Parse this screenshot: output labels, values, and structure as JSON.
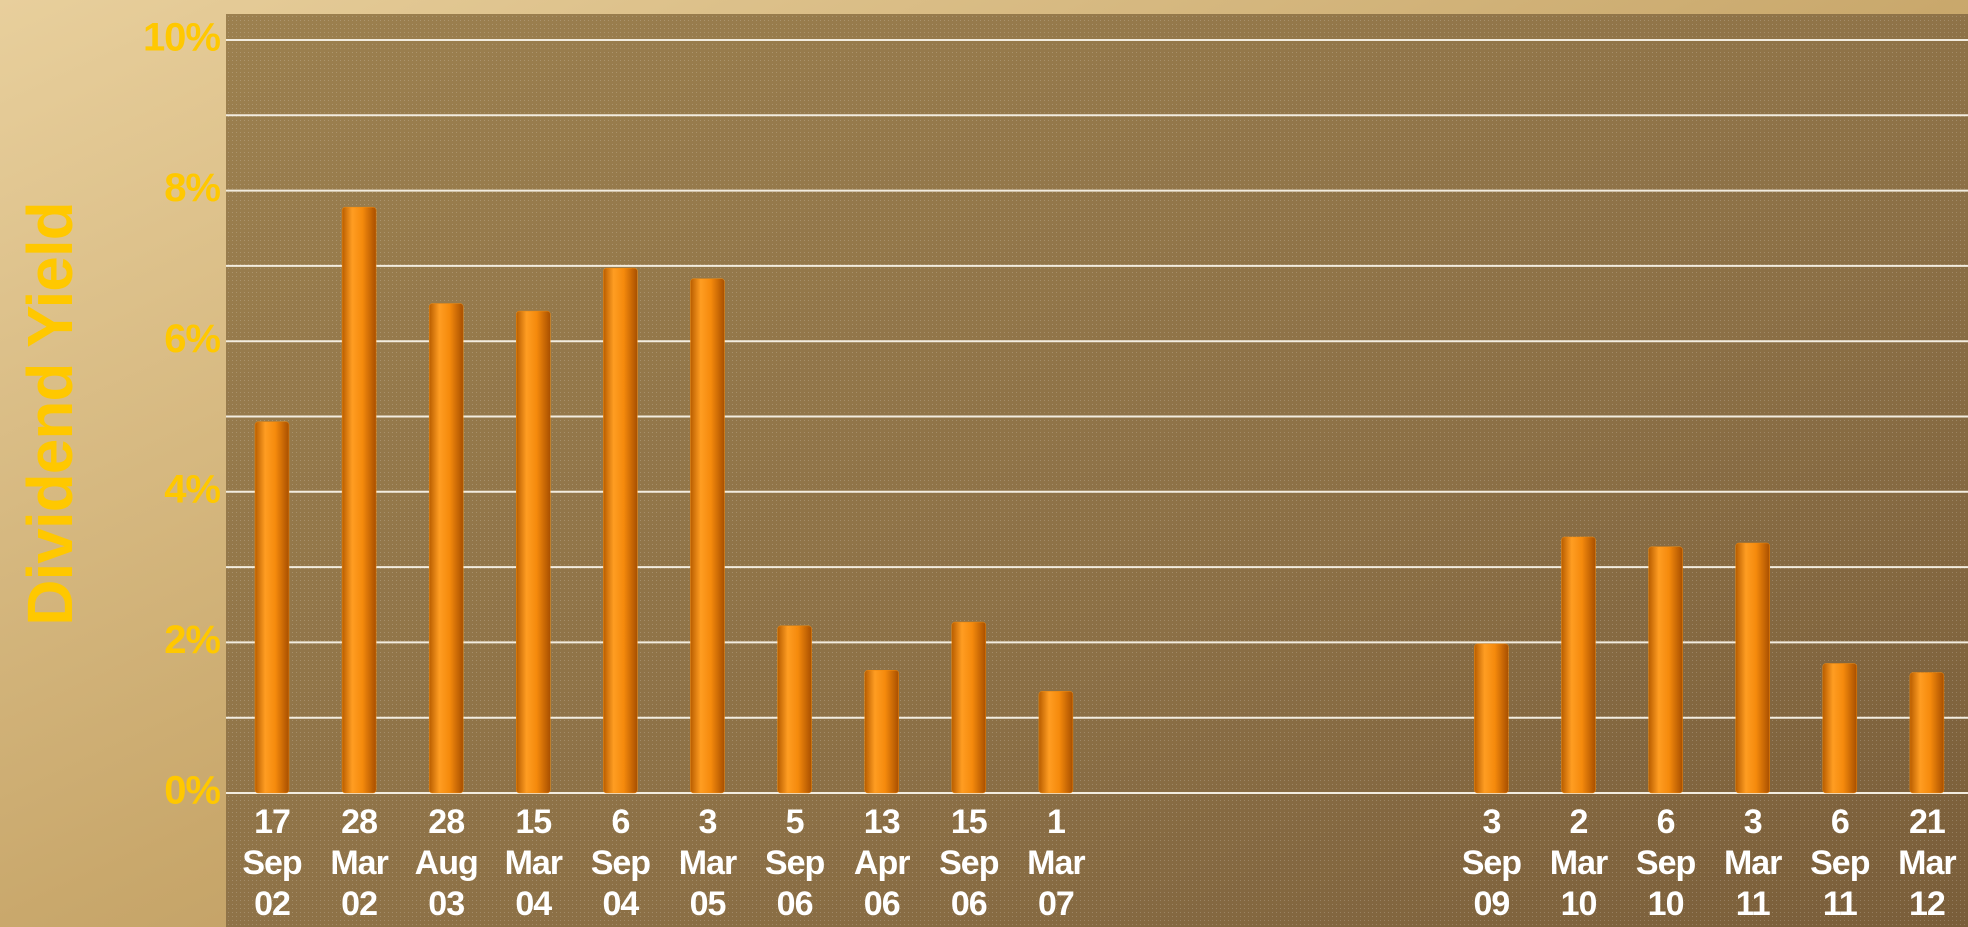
{
  "chart_data": {
    "type": "bar",
    "y_label": "Dividend Yield",
    "categories": [
      [
        "17",
        "Sep",
        "02"
      ],
      [
        "28",
        "Mar",
        "02"
      ],
      [
        "28",
        "Aug",
        "03"
      ],
      [
        "15",
        "Mar",
        "04"
      ],
      [
        "6",
        "Sep",
        "04"
      ],
      [
        "3",
        "Mar",
        "05"
      ],
      [
        "5",
        "Sep",
        "06"
      ],
      [
        "13",
        "Apr",
        "06"
      ],
      [
        "15",
        "Sep",
        "06"
      ],
      [
        "1",
        "Mar",
        "07"
      ],
      null,
      null,
      null,
      null,
      [
        "3",
        "Sep",
        "09"
      ],
      [
        "2",
        "Mar",
        "10"
      ],
      [
        "6",
        "Sep",
        "10"
      ],
      [
        "3",
        "Mar",
        "11"
      ],
      [
        "6",
        "Sep",
        "11"
      ],
      [
        "21",
        "Mar",
        "12"
      ]
    ],
    "values": [
      4.93,
      7.78,
      6.5,
      6.4,
      6.97,
      6.83,
      2.22,
      1.63,
      2.27,
      1.35,
      null,
      null,
      null,
      null,
      1.98,
      3.4,
      3.27,
      3.32,
      1.72,
      1.6
    ],
    "color": "#f28c10",
    "ylim": [
      0,
      10
    ],
    "yticks": [
      {
        "value": 0,
        "label": "0%"
      },
      {
        "value": 2,
        "label": "2%"
      },
      {
        "value": 4,
        "label": "4%"
      },
      {
        "value": 6,
        "label": "6%"
      },
      {
        "value": 8,
        "label": "8%"
      },
      {
        "value": 10,
        "label": "10%"
      }
    ],
    "minor_yticks": [
      1,
      3,
      5,
      7,
      9
    ],
    "grid": true
  }
}
